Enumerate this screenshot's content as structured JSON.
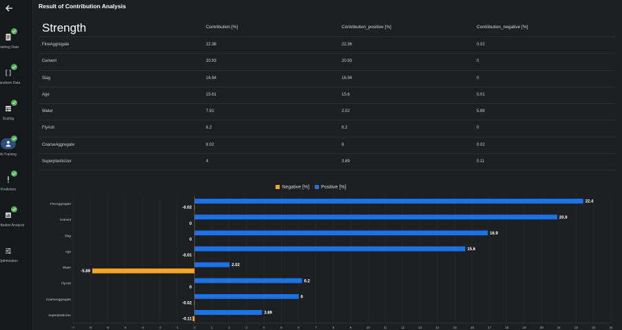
{
  "sidebar": {
    "items": [
      {
        "label": "Training Data",
        "icon": "document-icon",
        "done": true
      },
      {
        "label": "Transform Data",
        "icon": "brackets-icon",
        "done": true
      },
      {
        "label": "Scaling",
        "icon": "table-icon",
        "done": true
      },
      {
        "label": "AI Training",
        "icon": "person-icon",
        "done": true,
        "active": true
      },
      {
        "label": "Prediction",
        "icon": "exclamation-icon",
        "done": true
      },
      {
        "label": "Contribution Analysis",
        "icon": "chart-icon",
        "done": true
      },
      {
        "label": "Optimization",
        "icon": "sliders-icon",
        "done": false
      }
    ]
  },
  "header": {
    "title": "Result of Contribution Analysis"
  },
  "table": {
    "headers": [
      "Strength",
      "Contribution [%]",
      "Contribution_positive [%]",
      "Contribution_negative [%]"
    ],
    "rows": [
      [
        "FineAggregate",
        "22.38",
        "22.36",
        "0.02"
      ],
      [
        "Cement",
        "20.93",
        "20.93",
        "0"
      ],
      [
        "Slag",
        "16.94",
        "16.94",
        "0"
      ],
      [
        "Age",
        "15.61",
        "15.6",
        "0.01"
      ],
      [
        "Water",
        "7.91",
        "2.02",
        "5.89"
      ],
      [
        "FlyAsh",
        "6.2",
        "6.2",
        "0"
      ],
      [
        "CoarseAggregate",
        "6.02",
        "6",
        "0.02"
      ],
      [
        "Superplasticizer",
        "4",
        "3.89",
        "0.11"
      ]
    ]
  },
  "chart_data": {
    "type": "bar",
    "orientation": "horizontal",
    "categories": [
      "FineAggregate",
      "Cement",
      "Slag",
      "Age",
      "Water",
      "FlyAsh",
      "CoarseAggregate",
      "Superplasticizer"
    ],
    "series": [
      {
        "name": "Negative [%]",
        "values": [
          -0.02,
          0,
          0,
          -0.01,
          -5.89,
          0,
          -0.02,
          -0.11
        ],
        "labels": [
          "-0.02",
          "0",
          "0",
          "-0.01",
          "-5.89",
          "0",
          "-0.02",
          "-0.11"
        ],
        "color": "#f5a623"
      },
      {
        "name": "Positive [%]",
        "values": [
          22.4,
          20.9,
          16.9,
          15.6,
          2.02,
          6.2,
          6,
          3.89
        ],
        "labels": [
          "22.4",
          "20.9",
          "16.9",
          "15.6",
          "2.02",
          "6.2",
          "6",
          "3.89"
        ],
        "color": "#1a73e8"
      }
    ],
    "xlim": [
      -7,
      24
    ],
    "xticks": [
      -7,
      -6,
      -5,
      -4,
      -3,
      -2,
      -1,
      0,
      1,
      2,
      3,
      4,
      5,
      6,
      7,
      8,
      9,
      10,
      11,
      12,
      13,
      14,
      15,
      16,
      17,
      18,
      19,
      20,
      21,
      22,
      23,
      24
    ],
    "legend": "top-center",
    "grid": true
  },
  "colors": {
    "background": "#1e1f21",
    "accent": "#1a73e8",
    "negative": "#f5a623",
    "success": "#4caf50"
  }
}
